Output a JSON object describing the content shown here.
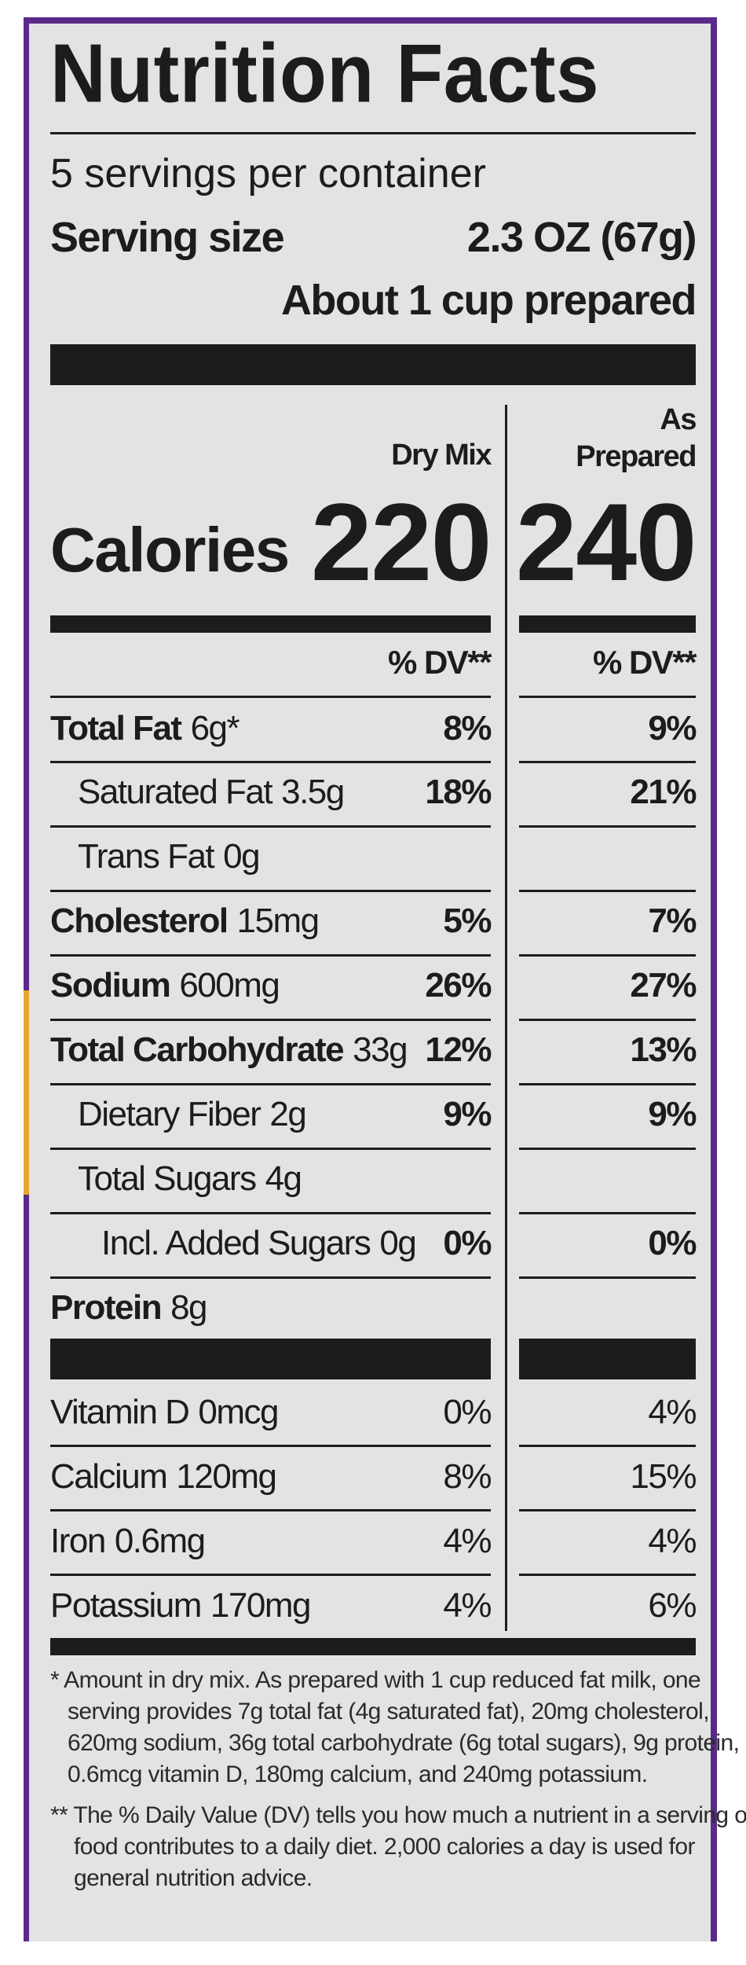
{
  "title": "Nutrition Facts",
  "servings_per_container": "5 servings per container",
  "serving_size_label": "Serving size",
  "serving_size_value": "2.3 OZ (67g)",
  "serving_size_prepared": "About 1 cup prepared",
  "columns": {
    "dry_mix": "Dry Mix",
    "as_prepared_1": "As",
    "as_prepared_2": "Prepared"
  },
  "calories": {
    "label": "Calories",
    "dry": "220",
    "prepared": "240"
  },
  "dv_header": "% DV**",
  "nutrients": [
    {
      "name": "Total Fat",
      "amount": "6g*",
      "dry": "8%",
      "prepared": "9%"
    },
    {
      "name": "Saturated Fat",
      "amount": "3.5g",
      "dry": "18%",
      "prepared": "21%"
    },
    {
      "name": "Trans Fat",
      "amount": "0g",
      "dry": "",
      "prepared": ""
    },
    {
      "name": "Cholesterol",
      "amount": "15mg",
      "dry": "5%",
      "prepared": "7%"
    },
    {
      "name": "Sodium",
      "amount": "600mg",
      "dry": "26%",
      "prepared": "27%"
    },
    {
      "name": "Total Carbohydrate",
      "amount": "33g",
      "dry": "12%",
      "prepared": "13%"
    },
    {
      "name": "Dietary Fiber",
      "amount": "2g",
      "dry": "9%",
      "prepared": "9%"
    },
    {
      "name": "Total Sugars",
      "amount": "4g",
      "dry": "",
      "prepared": ""
    },
    {
      "name": "Incl. Added Sugars",
      "amount": "0g",
      "dry": "0%",
      "prepared": "0%"
    },
    {
      "name": "Protein",
      "amount": "8g",
      "dry": "",
      "prepared": ""
    }
  ],
  "vitamins": [
    {
      "name": "Vitamin D",
      "amount": "0mcg",
      "dry": "0%",
      "prepared": "4%"
    },
    {
      "name": "Calcium",
      "amount": "120mg",
      "dry": "8%",
      "prepared": "15%"
    },
    {
      "name": "Iron",
      "amount": "0.6mg",
      "dry": "4%",
      "prepared": "4%"
    },
    {
      "name": "Potassium",
      "amount": "170mg",
      "dry": "4%",
      "prepared": "6%"
    }
  ],
  "footnote_1": [
    "* Amount in dry mix. As prepared with 1 cup reduced fat milk, one",
    "serving provides 7g total fat (4g saturated fat), 20mg cholesterol,",
    "620mg sodium, 36g total carbohydrate (6g total sugars), 9g protein,",
    "0.6mcg vitamin D, 180mg calcium, and 240mg potassium."
  ],
  "footnote_2": [
    "** The % Daily Value (DV) tells you how much a nutrient in a serving of",
    "food contributes to a daily diet. 2,000 calories a day is used for",
    "general nutrition advice."
  ]
}
